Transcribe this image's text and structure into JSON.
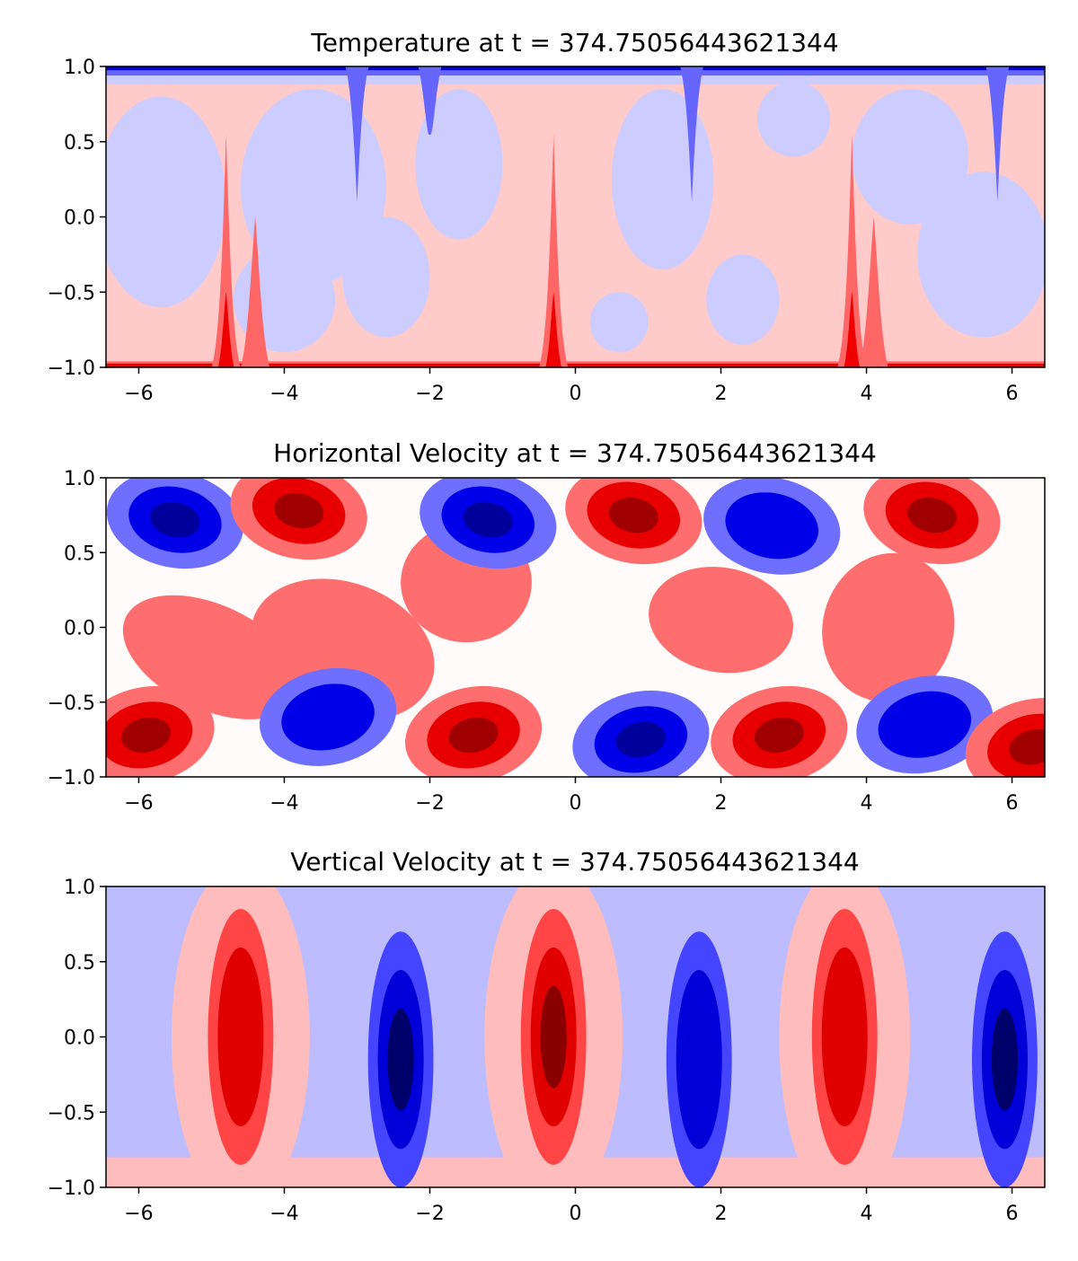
{
  "figure": {
    "panels": [
      {
        "title": "Temperature at t = 374.75056443621344"
      },
      {
        "title": "Horizontal Velocity at t = 374.75056443621344"
      },
      {
        "title": "Vertical Velocity at t = 374.75056443621344"
      }
    ]
  },
  "chart_data": [
    {
      "type": "heatmap",
      "title": "Temperature at t = 374.75056443621344",
      "xlabel": "",
      "ylabel": "",
      "xlim": [
        -6.45,
        6.45
      ],
      "ylim": [
        -1.0,
        1.0
      ],
      "xticks": [
        -6,
        -4,
        -2,
        0,
        2,
        4,
        6
      ],
      "yticks": [
        -1.0,
        -0.5,
        0.0,
        0.5,
        1.0
      ],
      "xtick_labels": [
        "−6",
        "−4",
        "−2",
        "0",
        "2",
        "4",
        "6"
      ],
      "ytick_labels": [
        "−1.0",
        "−0.5",
        "0.0",
        "0.5",
        "1.0"
      ],
      "colormap": "bwr",
      "description": "Hot (red) boundary layer at bottom y=-1 and cold (blue) boundary layer at top y=1; rising red plumes near x=-4.8, x=-0.3, x=3.8; descending blue plumes near x=-3, x=1.6, x=5.8",
      "plumes": [
        {
          "x": -4.8,
          "kind": "hot",
          "level": 2
        },
        {
          "x": -4.4,
          "kind": "hot",
          "level": 1
        },
        {
          "x": -0.3,
          "kind": "hot",
          "level": 2
        },
        {
          "x": 3.8,
          "kind": "hot",
          "level": 2
        },
        {
          "x": 4.1,
          "kind": "hot",
          "level": 1
        },
        {
          "x": -3.0,
          "kind": "cold",
          "level": -2
        },
        {
          "x": -2.0,
          "kind": "cold",
          "level": -1
        },
        {
          "x": 1.6,
          "kind": "cold",
          "level": -2
        },
        {
          "x": 5.8,
          "kind": "cold",
          "level": -2
        }
      ]
    },
    {
      "type": "heatmap",
      "title": "Horizontal Velocity at t = 374.75056443621344",
      "xlabel": "",
      "ylabel": "",
      "xlim": [
        -6.45,
        6.45
      ],
      "ylim": [
        -1.0,
        1.0
      ],
      "xticks": [
        -6,
        -4,
        -2,
        0,
        2,
        4,
        6
      ],
      "yticks": [
        -1.0,
        -0.5,
        0.0,
        0.5,
        1.0
      ],
      "xtick_labels": [
        "−6",
        "−4",
        "−2",
        "0",
        "2",
        "4",
        "6"
      ],
      "ytick_labels": [
        "−1.0",
        "−0.5",
        "0.0",
        "0.5",
        "1.0"
      ],
      "colormap": "bwr",
      "cells": [
        {
          "x": -5.5,
          "y": 0.72,
          "sign": -1,
          "strength": 3
        },
        {
          "x": -3.8,
          "y": 0.78,
          "sign": 1,
          "strength": 3
        },
        {
          "x": -1.2,
          "y": 0.72,
          "sign": -1,
          "strength": 3
        },
        {
          "x": 0.8,
          "y": 0.75,
          "sign": 1,
          "strength": 3
        },
        {
          "x": 2.7,
          "y": 0.68,
          "sign": -1,
          "strength": 2
        },
        {
          "x": 4.9,
          "y": 0.75,
          "sign": 1,
          "strength": 3
        },
        {
          "x": -5.9,
          "y": -0.72,
          "sign": 1,
          "strength": 3
        },
        {
          "x": -3.4,
          "y": -0.6,
          "sign": -1,
          "strength": 2
        },
        {
          "x": -1.4,
          "y": -0.72,
          "sign": 1,
          "strength": 3
        },
        {
          "x": 0.9,
          "y": -0.75,
          "sign": -1,
          "strength": 3
        },
        {
          "x": 2.8,
          "y": -0.72,
          "sign": 1,
          "strength": 3
        },
        {
          "x": 4.8,
          "y": -0.65,
          "sign": -1,
          "strength": 2
        },
        {
          "x": 6.3,
          "y": -0.8,
          "sign": 1,
          "strength": 3
        }
      ]
    },
    {
      "type": "heatmap",
      "title": "Vertical Velocity at t = 374.75056443621344",
      "xlabel": "",
      "ylabel": "",
      "xlim": [
        -6.45,
        6.45
      ],
      "ylim": [
        -1.0,
        1.0
      ],
      "xticks": [
        -6,
        -4,
        -2,
        0,
        2,
        4,
        6
      ],
      "yticks": [
        -1.0,
        -0.5,
        0.0,
        0.5,
        1.0
      ],
      "xtick_labels": [
        "−6",
        "−4",
        "−2",
        "0",
        "2",
        "4",
        "6"
      ],
      "ytick_labels": [
        "−1.0",
        "−0.5",
        "0.0",
        "0.5",
        "1.0"
      ],
      "colormap": "bwr",
      "columns": [
        {
          "x": -4.6,
          "sign": 1,
          "strength": 3
        },
        {
          "x": -2.4,
          "sign": -1,
          "strength": 4
        },
        {
          "x": -0.3,
          "sign": 1,
          "strength": 4
        },
        {
          "x": 1.7,
          "sign": -1,
          "strength": 3
        },
        {
          "x": 3.7,
          "sign": 1,
          "strength": 3
        },
        {
          "x": 5.9,
          "sign": -1,
          "strength": 4
        }
      ]
    }
  ]
}
